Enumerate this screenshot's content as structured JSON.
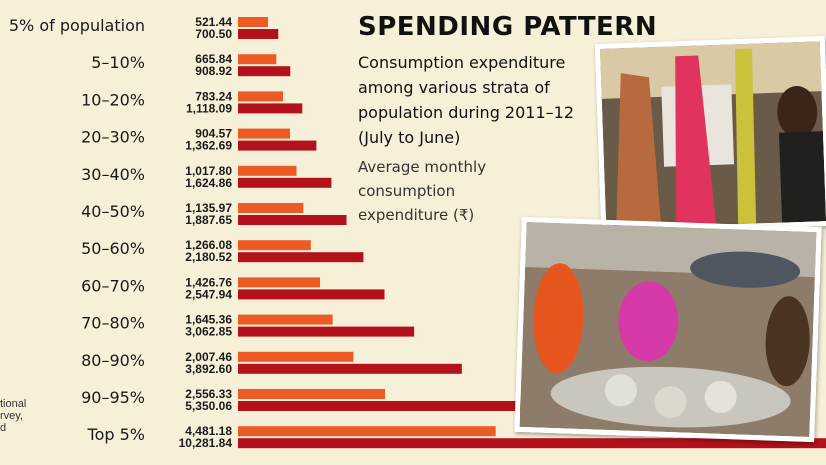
{
  "chart_data": {
    "type": "bar",
    "title": "SPENDING PATTERN",
    "subtitle": "Consumption expenditure among various strata of population during 2011–12 (July to June)",
    "unit_label": "Average monthly consumption expenditure (₹)",
    "categories": [
      "5% of population",
      "5–10%",
      "10–20%",
      "20–30%",
      "30–40%",
      "40–50%",
      "50–60%",
      "60–70%",
      "70–80%",
      "80–90%",
      "90–95%",
      "Top 5%"
    ],
    "series": [
      {
        "color": "#ec5a25",
        "labels": [
          "521.44",
          "665.84",
          "783.24",
          "904.57",
          "1,017.80",
          "1,135.97",
          "1,266.08",
          "1,426.76",
          "1,645.36",
          "2,007.46",
          "2,556.33",
          "4,481.18"
        ],
        "values": [
          521.44,
          665.84,
          783.24,
          904.57,
          1017.8,
          1135.97,
          1266.08,
          1426.76,
          1645.36,
          2007.46,
          2556.33,
          4481.18
        ]
      },
      {
        "color": "#b3121c",
        "labels": [
          "700.50",
          "908.92",
          "1,118.09",
          "1,362.69",
          "1,624.86",
          "1,887.65",
          "2,180.52",
          "2,547.94",
          "3,062.85",
          "3,892.60",
          "5,350.06",
          "10,281.84"
        ],
        "values": [
          700.5,
          908.92,
          1118.09,
          1362.69,
          1624.86,
          1887.65,
          2180.52,
          2547.94,
          3062.85,
          3892.6,
          5350.06,
          10281.84
        ]
      }
    ]
  },
  "source_lines": [
    "tional",
    "rvey,",
    "d"
  ],
  "colors": {
    "background": "#f7f0d8",
    "accent_orange": "#ec5a25",
    "accent_red": "#b3121c"
  }
}
